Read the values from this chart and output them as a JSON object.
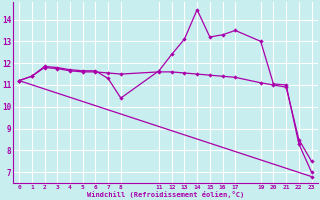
{
  "background_color": "#c8eef0",
  "grid_color": "#ffffff",
  "line_color": "#aa00aa",
  "xlabel": "Windchill (Refroidissement éolien,°C)",
  "xlim": [
    -0.5,
    23.5
  ],
  "ylim": [
    6.5,
    14.8
  ],
  "yticks": [
    7,
    8,
    9,
    10,
    11,
    12,
    13,
    14
  ],
  "xticks": [
    0,
    1,
    2,
    3,
    4,
    5,
    6,
    7,
    8,
    11,
    12,
    13,
    14,
    15,
    16,
    17,
    19,
    20,
    21,
    22,
    23
  ],
  "series1_x": [
    0,
    1,
    2,
    3,
    4,
    5,
    6,
    7,
    8,
    11,
    12,
    13,
    14,
    15,
    16,
    17,
    19,
    20,
    21,
    22,
    23
  ],
  "series1_y": [
    11.2,
    11.4,
    11.85,
    11.8,
    11.7,
    11.65,
    11.65,
    11.3,
    10.4,
    11.65,
    12.4,
    13.1,
    14.45,
    13.2,
    13.3,
    13.5,
    13.0,
    11.05,
    11.0,
    8.3,
    7.0
  ],
  "series2_x": [
    0,
    1,
    2,
    3,
    4,
    5,
    6,
    7,
    8,
    11,
    12,
    13,
    14,
    15,
    16,
    17,
    19,
    20,
    21,
    22,
    23
  ],
  "series2_y": [
    11.2,
    11.4,
    11.8,
    11.75,
    11.65,
    11.6,
    11.6,
    11.55,
    11.5,
    11.6,
    11.6,
    11.55,
    11.5,
    11.45,
    11.4,
    11.35,
    11.1,
    11.0,
    10.9,
    8.5,
    7.5
  ],
  "series3_x": [
    0,
    23
  ],
  "series3_y": [
    11.2,
    6.8
  ]
}
